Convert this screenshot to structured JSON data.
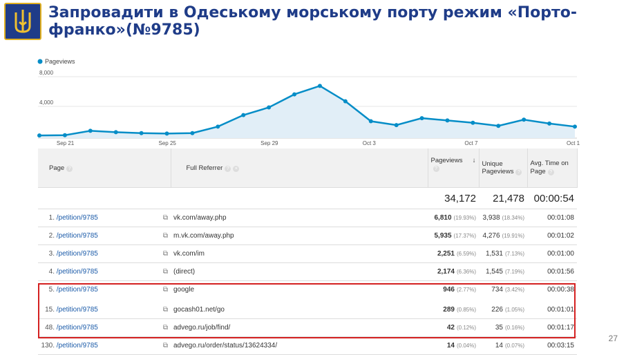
{
  "slide": {
    "title": "Запровадити в Одеському морському порту режим «Порто-франко»(№9785)",
    "page_number": "27",
    "emblem_icon": "trident-icon"
  },
  "chart_data": {
    "type": "area",
    "series": [
      {
        "name": "Pageviews",
        "values": [
          350,
          380,
          950,
          780,
          650,
          600,
          650,
          1500,
          3000,
          4000,
          5700,
          6800,
          4800,
          2200,
          1700,
          2600,
          2300,
          2000,
          1600,
          2400,
          1900,
          1500
        ]
      }
    ],
    "x_tick_labels": [
      "Sep 21",
      "Sep 25",
      "Sep 29",
      "Oct 3",
      "Oct 7",
      "Oct 1"
    ],
    "x_tick_index": [
      1,
      5,
      9,
      13,
      17,
      21
    ],
    "y_tick_labels": [
      "8,000",
      "4,000"
    ],
    "y_tick_values": [
      8000,
      4000
    ],
    "ylim": [
      0,
      8000
    ],
    "color": "#058dc7",
    "fill": "#e1eef7"
  },
  "table": {
    "headers": {
      "page": "Page",
      "referrer": "Full Referrer",
      "pageviews": "Pageviews",
      "unique": "Unique Pageviews",
      "avg_time": "Avg. Time on Page"
    },
    "totals": {
      "pageviews": "34,172",
      "unique": "21,478",
      "avg_time": "00:00:54"
    },
    "rows": [
      {
        "idx": "1.",
        "page": "/petition/9785",
        "referrer": "vk.com/away.php",
        "pv": "6,810",
        "pv_pct": "(19.93%)",
        "upv": "3,938",
        "upv_pct": "(18.34%)",
        "time": "00:01:08"
      },
      {
        "idx": "2.",
        "page": "/petition/9785",
        "referrer": "m.vk.com/away.php",
        "pv": "5,935",
        "pv_pct": "(17.37%)",
        "upv": "4,276",
        "upv_pct": "(19.91%)",
        "time": "00:01:02"
      },
      {
        "idx": "3.",
        "page": "/petition/9785",
        "referrer": "vk.com/im",
        "pv": "2,251",
        "pv_pct": "(6.59%)",
        "upv": "1,531",
        "upv_pct": "(7.13%)",
        "time": "00:01:00"
      },
      {
        "idx": "4.",
        "page": "/petition/9785",
        "referrer": "(direct)",
        "pv": "2,174",
        "pv_pct": "(6.36%)",
        "upv": "1,545",
        "upv_pct": "(7.19%)",
        "time": "00:01:56"
      },
      {
        "idx": "5.",
        "page": "/petition/9785",
        "referrer": "google",
        "pv": "946",
        "pv_pct": "(2.77%)",
        "upv": "734",
        "upv_pct": "(3.42%)",
        "time": "00:00:38"
      },
      {
        "idx": "15.",
        "page": "/petition/9785",
        "referrer": "gocash01.net/go",
        "pv": "289",
        "pv_pct": "(0.85%)",
        "upv": "226",
        "upv_pct": "(1.05%)",
        "time": "00:01:01"
      },
      {
        "idx": "48.",
        "page": "/petition/9785",
        "referrer": "advego.ru/job/find/",
        "pv": "42",
        "pv_pct": "(0.12%)",
        "upv": "35",
        "upv_pct": "(0.16%)",
        "time": "00:01:17"
      },
      {
        "idx": "130.",
        "page": "/petition/9785",
        "referrer": "advego.ru/order/status/13624334/",
        "pv": "14",
        "pv_pct": "(0.04%)",
        "upv": "14",
        "upv_pct": "(0.07%)",
        "time": "00:03:15"
      }
    ]
  }
}
